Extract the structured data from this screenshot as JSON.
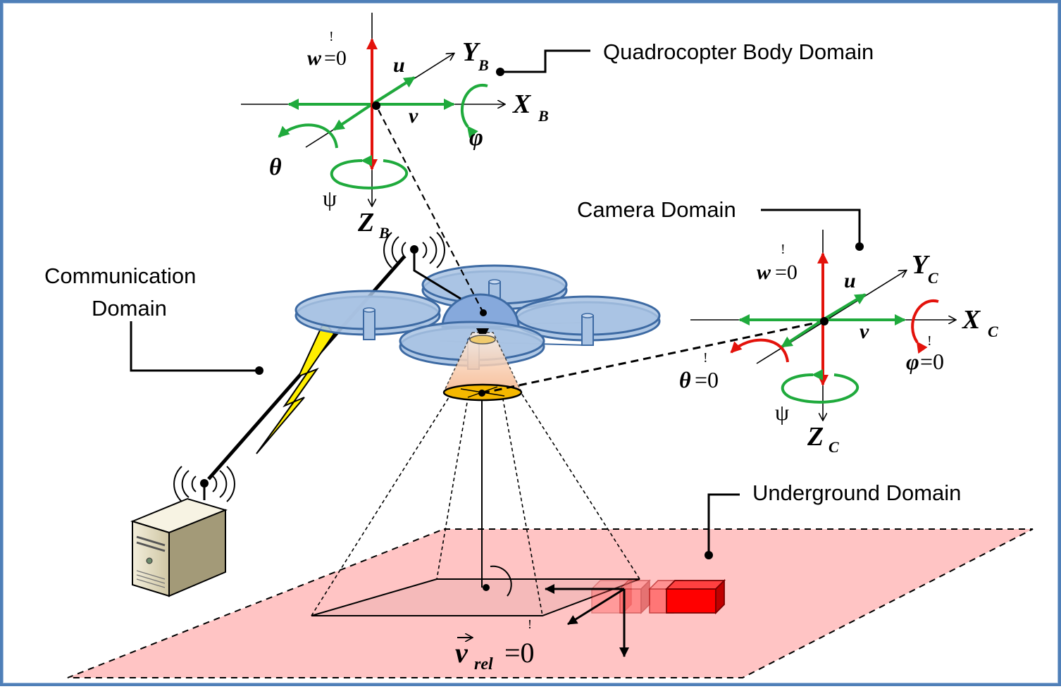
{
  "labels": {
    "body_domain": "Quadrocopter Body Domain",
    "camera_domain": "Camera Domain",
    "comm_domain_line1": "Communication",
    "comm_domain_line2": "Domain",
    "underground_domain": "Underground Domain"
  },
  "body_frame": {
    "x_axis": "X",
    "x_sub": "B",
    "y_axis": "Y",
    "y_sub": "B",
    "z_axis": "Z",
    "z_sub": "B",
    "w_label": "w",
    "w_eq": "=0",
    "u_label": "u",
    "v_label": "v",
    "phi_label": "φ",
    "theta_label": "θ",
    "psi_label": "ψ"
  },
  "camera_frame": {
    "x_axis": "X",
    "x_sub": "C",
    "y_axis": "Y",
    "y_sub": "C",
    "z_axis": "Z",
    "z_sub": "C",
    "w_label": "w",
    "w_eq": "=0",
    "u_label": "u",
    "v_label": "v",
    "phi_label": "φ",
    "phi_eq": "=0",
    "theta_label": "θ",
    "theta_eq": "=0",
    "psi_label": "ψ"
  },
  "ground": {
    "v_rel_label": "v",
    "v_rel_sub": "rel",
    "v_rel_eq": "=0"
  },
  "mark": "!",
  "colors": {
    "frame_border": "#4f7fb8",
    "green_arrow": "#1faa3c",
    "red_arrow": "#e3120b",
    "ground_plane": "#ffc4c4",
    "rotor": "#a9c3e3",
    "rotor_stroke": "#3d6aa3",
    "lightning": "#ffee00",
    "target_box": "#ff0000"
  }
}
